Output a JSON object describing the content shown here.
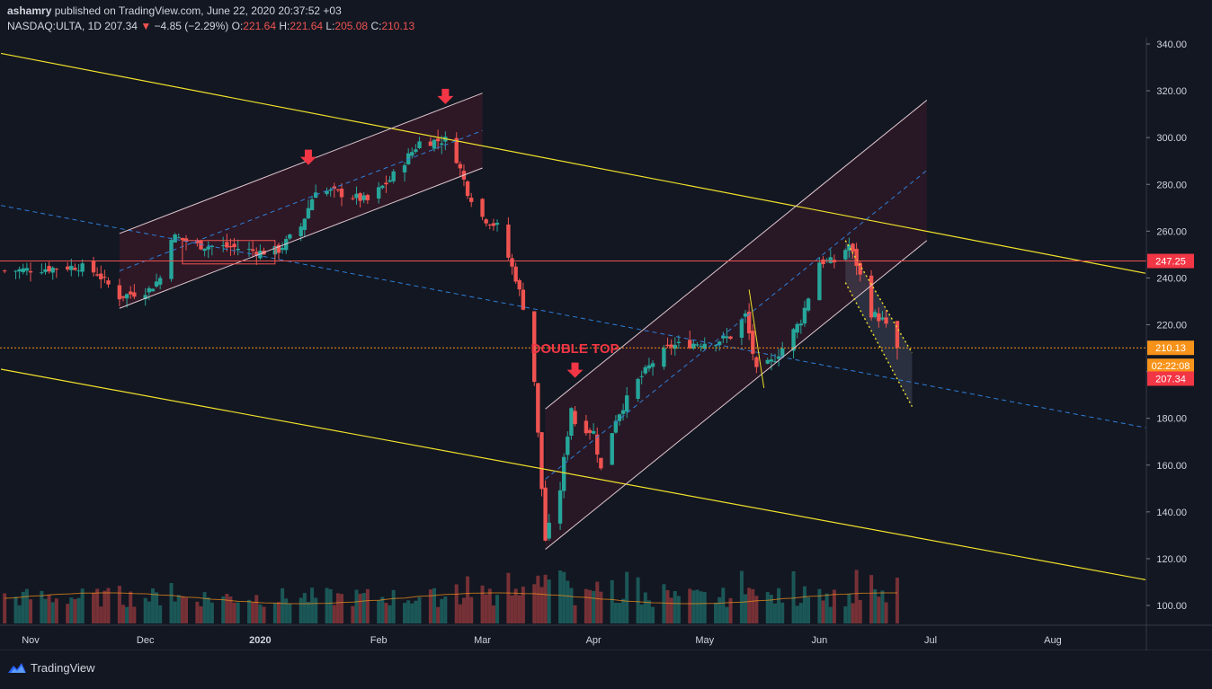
{
  "header": {
    "publisher": "ashamry",
    "published_text": "published on TradingView.com, June 22, 2020 20:37:52 +03",
    "symbol": "NASDAQ:ULTA, 1D",
    "last": "207.34",
    "change_arrow": "▼",
    "change": "−4.85 (−2.29%)",
    "o_label": "O:",
    "o": "221.64",
    "h_label": "H:",
    "h": "221.64",
    "l_label": "L:",
    "l": "205.08",
    "c_label": "C:",
    "c": "210.13"
  },
  "footer": {
    "brand": "TradingView",
    "logo_icon": "tradingview-logo-icon"
  },
  "colors": {
    "background": "#131722",
    "up": "#26a69a",
    "down": "#ef5350",
    "trendline": "#f0e12b",
    "channel": "#e0c8d0",
    "midline": "#2f7fd8",
    "horizontal": "#ef5350",
    "current_price": "#f7931a"
  },
  "annotations": {
    "double_top": "DOUBLE TOP"
  },
  "price_labels": {
    "level_1": "247.25",
    "current": "210.13",
    "countdown": "02:22:08",
    "last": "207.34"
  },
  "chart_data": {
    "type": "candlestick",
    "title": "NASDAQ:ULTA, 1D",
    "y_axis": {
      "ylim": [
        92,
        344
      ],
      "ticks": [
        340,
        320,
        300,
        280,
        260,
        240,
        220,
        200,
        180,
        160,
        140,
        120,
        100
      ],
      "tick_labels": [
        "340.00",
        "320.00",
        "300.00",
        "280.00",
        "260.00",
        "240.00",
        "220.00",
        "200.00",
        "180.00",
        "160.00",
        "140.00",
        "120.00",
        "100.00"
      ]
    },
    "x_axis": {
      "ticks": [
        "Nov",
        "Dec",
        "2020",
        "Feb",
        "Mar",
        "Apr",
        "May",
        "Jun",
        "Jul",
        "Aug"
      ],
      "tick_dates": [
        "2019-11-01",
        "2019-12-02",
        "2020-01-02",
        "2020-02-03",
        "2020-03-02",
        "2020-04-01",
        "2020-05-01",
        "2020-06-01",
        "2020-07-01",
        "2020-08-03"
      ]
    },
    "grid": false,
    "close_anchors": [
      [
        "2019-10-25",
        243
      ],
      [
        "2019-11-05",
        244
      ],
      [
        "2019-11-14",
        245
      ],
      [
        "2019-11-19",
        242
      ],
      [
        "2019-11-25",
        232
      ],
      [
        "2019-12-03",
        235
      ],
      [
        "2019-12-06",
        240
      ],
      [
        "2019-12-09",
        258
      ],
      [
        "2019-12-16",
        254
      ],
      [
        "2019-12-26",
        253
      ],
      [
        "2020-01-02",
        251
      ],
      [
        "2020-01-07",
        252
      ],
      [
        "2020-01-13",
        262
      ],
      [
        "2020-01-17",
        278
      ],
      [
        "2020-01-24",
        276
      ],
      [
        "2020-01-31",
        273
      ],
      [
        "2020-02-06",
        282
      ],
      [
        "2020-02-12",
        294
      ],
      [
        "2020-02-14",
        298
      ],
      [
        "2020-02-21",
        299
      ],
      [
        "2020-02-24",
        291
      ],
      [
        "2020-02-27",
        277
      ],
      [
        "2020-03-02",
        266
      ],
      [
        "2020-03-06",
        262
      ],
      [
        "2020-03-11",
        240
      ],
      [
        "2020-03-13",
        228
      ],
      [
        "2020-03-16",
        196
      ],
      [
        "2020-03-18",
        150
      ],
      [
        "2020-03-19",
        128
      ],
      [
        "2020-03-23",
        150
      ],
      [
        "2020-03-24",
        162
      ],
      [
        "2020-03-26",
        185
      ],
      [
        "2020-03-27",
        178
      ],
      [
        "2020-04-01",
        174
      ],
      [
        "2020-04-03",
        158
      ],
      [
        "2020-04-07",
        180
      ],
      [
        "2020-04-13",
        196
      ],
      [
        "2020-04-17",
        204
      ],
      [
        "2020-04-22",
        211
      ],
      [
        "2020-04-28",
        212
      ],
      [
        "2020-05-04",
        213
      ],
      [
        "2020-05-08",
        215
      ],
      [
        "2020-05-12",
        224
      ],
      [
        "2020-05-15",
        200
      ],
      [
        "2020-05-19",
        204
      ],
      [
        "2020-05-22",
        210
      ],
      [
        "2020-05-27",
        222
      ],
      [
        "2020-06-01",
        247
      ],
      [
        "2020-06-05",
        247
      ],
      [
        "2020-06-09",
        254
      ],
      [
        "2020-06-11",
        246
      ],
      [
        "2020-06-15",
        225
      ],
      [
        "2020-06-18",
        222
      ],
      [
        "2020-06-22",
        210.13
      ]
    ],
    "last_candle": {
      "date": "2020-06-22",
      "open": 221.64,
      "high": 221.64,
      "low": 205.08,
      "close": 210.13
    },
    "horizontal_lines": [
      247.25,
      210.13
    ],
    "volume_series": {
      "name": "Volume",
      "has_moving_average": true
    }
  }
}
